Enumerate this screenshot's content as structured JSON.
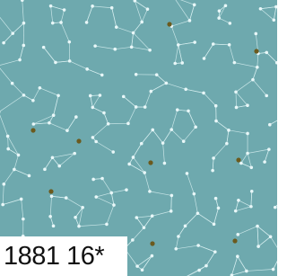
{
  "label": "1881 16*"
}
